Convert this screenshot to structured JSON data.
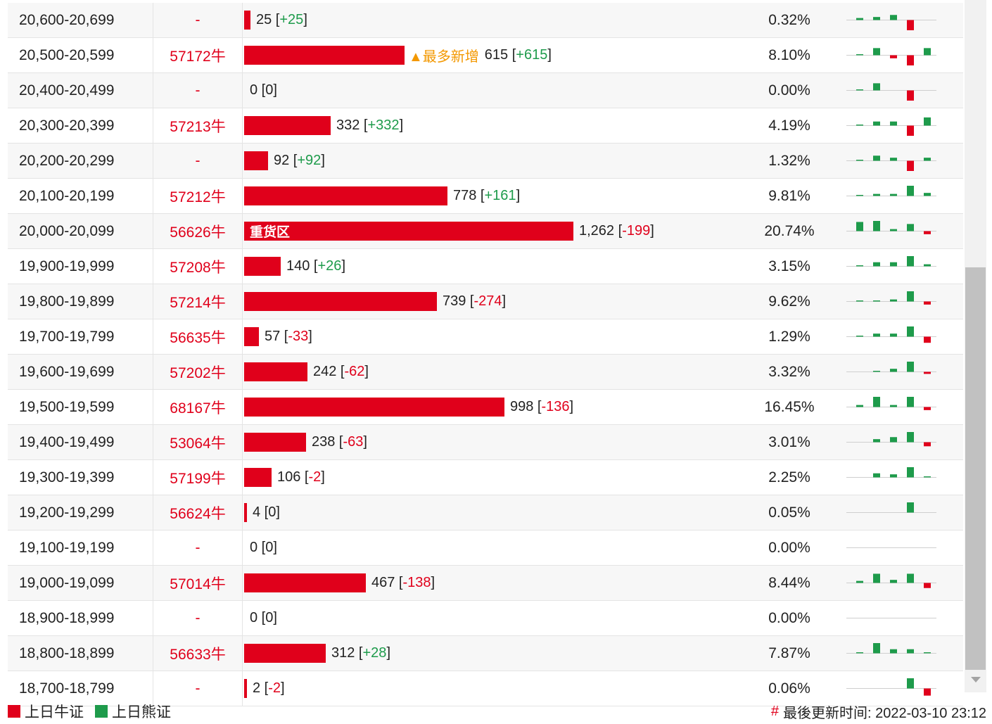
{
  "colors": {
    "bull": "#e0001b",
    "bear": "#1e9b4b",
    "highlight": "#f39800"
  },
  "rows": [
    {
      "range": "20,600-20,699",
      "code": "-",
      "count": "25",
      "change": "+25",
      "pct": "0.32%",
      "bar_value": 25,
      "spark": [
        2,
        3,
        5,
        -10,
        0,
        1
      ]
    },
    {
      "range": "20,500-20,599",
      "code": "57172牛",
      "count": "615",
      "change": "+615",
      "pct": "8.10%",
      "bar_value": 615,
      "note": "▲最多新增",
      "spark": [
        1,
        7,
        -3,
        -10,
        7,
        0
      ]
    },
    {
      "range": "20,400-20,499",
      "code": "-",
      "count": "0",
      "change": "0",
      "pct": "0.00%",
      "bar_value": 0,
      "spark": [
        1,
        7,
        0,
        -10,
        0,
        0
      ]
    },
    {
      "range": "20,300-20,399",
      "code": "57213牛",
      "count": "332",
      "change": "+332",
      "pct": "4.19%",
      "bar_value": 332,
      "spark": [
        1,
        4,
        4,
        -10,
        8,
        0
      ]
    },
    {
      "range": "20,200-20,299",
      "code": "-",
      "count": "92",
      "change": "+92",
      "pct": "1.32%",
      "bar_value": 92,
      "spark": [
        1,
        5,
        3,
        -10,
        3,
        0
      ]
    },
    {
      "range": "20,100-20,199",
      "code": "57212牛",
      "count": "778",
      "change": "+161",
      "pct": "9.81%",
      "bar_value": 778,
      "spark": [
        1,
        2,
        2,
        10,
        3,
        0
      ]
    },
    {
      "range": "20,000-20,099",
      "code": "56626牛",
      "count": "1,262",
      "change": "-199",
      "pct": "20.74%",
      "bar_value": 1262,
      "label": "重货区",
      "spark": [
        9,
        10,
        2,
        7,
        -3,
        0
      ]
    },
    {
      "range": "19,900-19,999",
      "code": "57208牛",
      "count": "140",
      "change": "+26",
      "pct": "3.15%",
      "bar_value": 140,
      "spark": [
        1,
        4,
        4,
        10,
        2,
        0
      ]
    },
    {
      "range": "19,800-19,899",
      "code": "57214牛",
      "count": "739",
      "change": "-274",
      "pct": "9.62%",
      "bar_value": 739,
      "spark": [
        1,
        1,
        2,
        10,
        -3,
        0
      ]
    },
    {
      "range": "19,700-19,799",
      "code": "56635牛",
      "count": "57",
      "change": "-33",
      "pct": "1.29%",
      "bar_value": 57,
      "spark": [
        1,
        3,
        3,
        10,
        -6,
        0
      ]
    },
    {
      "range": "19,600-19,699",
      "code": "57202牛",
      "count": "242",
      "change": "-62",
      "pct": "3.32%",
      "bar_value": 242,
      "spark": [
        0,
        1,
        3,
        10,
        -2,
        0
      ]
    },
    {
      "range": "19,500-19,599",
      "code": "68167牛",
      "count": "998",
      "change": "-136",
      "pct": "16.45%",
      "bar_value": 998,
      "spark": [
        2,
        10,
        2,
        10,
        -3,
        0
      ]
    },
    {
      "range": "19,400-19,499",
      "code": "53064牛",
      "count": "238",
      "change": "-63",
      "pct": "3.01%",
      "bar_value": 238,
      "spark": [
        0,
        3,
        5,
        10,
        -4,
        0
      ]
    },
    {
      "range": "19,300-19,399",
      "code": "57199牛",
      "count": "106",
      "change": "-2",
      "pct": "2.25%",
      "bar_value": 106,
      "spark": [
        0,
        4,
        3,
        10,
        1,
        0
      ]
    },
    {
      "range": "19,200-19,299",
      "code": "56624牛",
      "count": "4",
      "change": "0",
      "pct": "0.05%",
      "bar_value": 4,
      "spark": [
        0,
        0,
        0,
        10,
        0,
        0
      ]
    },
    {
      "range": "19,100-19,199",
      "code": "-",
      "count": "0",
      "change": "0",
      "pct": "0.00%",
      "bar_value": 0,
      "spark": [
        0,
        0,
        0,
        0,
        0,
        0
      ]
    },
    {
      "range": "19,000-19,099",
      "code": "57014牛",
      "count": "467",
      "change": "-138",
      "pct": "8.44%",
      "bar_value": 467,
      "spark": [
        2,
        9,
        3,
        9,
        -5,
        0
      ]
    },
    {
      "range": "18,900-18,999",
      "code": "-",
      "count": "0",
      "change": "0",
      "pct": "0.00%",
      "bar_value": 0,
      "spark": [
        0,
        0,
        0,
        0,
        0,
        0
      ]
    },
    {
      "range": "18,800-18,899",
      "code": "56633牛",
      "count": "312",
      "change": "+28",
      "pct": "7.87%",
      "bar_value": 312,
      "spark": [
        1,
        10,
        4,
        4,
        1,
        0
      ]
    },
    {
      "range": "18,700-18,799",
      "code": "-",
      "count": "2",
      "change": "-2",
      "pct": "0.06%",
      "bar_value": 2,
      "spark": [
        0,
        0,
        0,
        10,
        -7,
        0
      ]
    }
  ],
  "legend": {
    "bull_label": "上日牛证",
    "bear_label": "上日熊证"
  },
  "footer": {
    "hash": "#",
    "updated_label": "最後更新时间: 2022-03-10 23:12"
  }
}
